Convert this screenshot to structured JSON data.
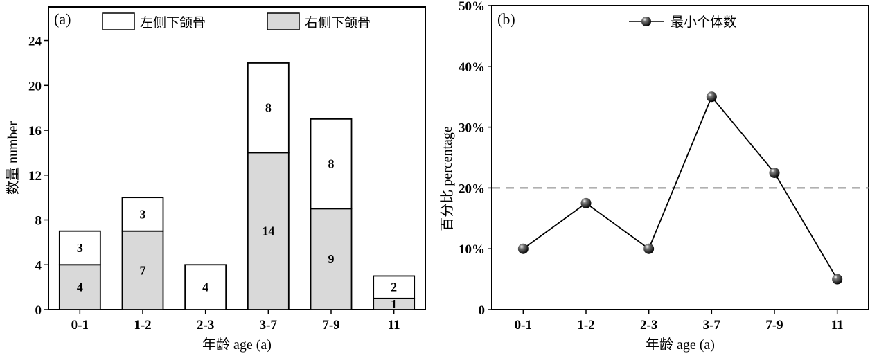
{
  "chart_data": [
    {
      "type": "bar",
      "panel_label": "(a)",
      "categories": [
        "0-1",
        "1-2",
        "2-3",
        "3-7",
        "7-9",
        "11"
      ],
      "series": [
        {
          "name": "右侧下颌骨",
          "values": [
            4,
            7,
            0,
            14,
            9,
            1
          ],
          "color": "#d9d9d9"
        },
        {
          "name": "左侧下颌骨",
          "values": [
            3,
            3,
            4,
            8,
            8,
            2
          ],
          "color": "#ffffff"
        }
      ],
      "stacked": true,
      "bar_labels": [
        {
          "right": "4",
          "left": "3"
        },
        {
          "right": "7",
          "left": "3"
        },
        {
          "right": "",
          "left": "4"
        },
        {
          "right": "14",
          "left": "8"
        },
        {
          "right": "9",
          "left": "8"
        },
        {
          "right": "1",
          "left": "2"
        }
      ],
      "xlabel": "年龄 age (a)",
      "ylabel": "数量 number",
      "ylim": [
        0,
        27
      ],
      "yticks": [
        "0",
        "4",
        "8",
        "12",
        "16",
        "20",
        "24"
      ],
      "grid": false,
      "legend": "top"
    },
    {
      "type": "line",
      "panel_label": "(b)",
      "categories": [
        "0-1",
        "1-2",
        "2-3",
        "3-7",
        "7-9",
        "11"
      ],
      "series": [
        {
          "name": "最小个体数",
          "values": [
            10,
            17.5,
            10,
            35,
            22.5,
            5
          ],
          "color": "#000000"
        }
      ],
      "reference_line": {
        "value": 20,
        "style": "dashed",
        "color": "#808080"
      },
      "xlabel": "年龄 age (a)",
      "ylabel": "百分比  percentage",
      "ylim": [
        0,
        50
      ],
      "yticks": [
        "0",
        "10%",
        "20%",
        "30%",
        "40%",
        "50%"
      ],
      "grid": false,
      "legend": "top-center"
    }
  ]
}
